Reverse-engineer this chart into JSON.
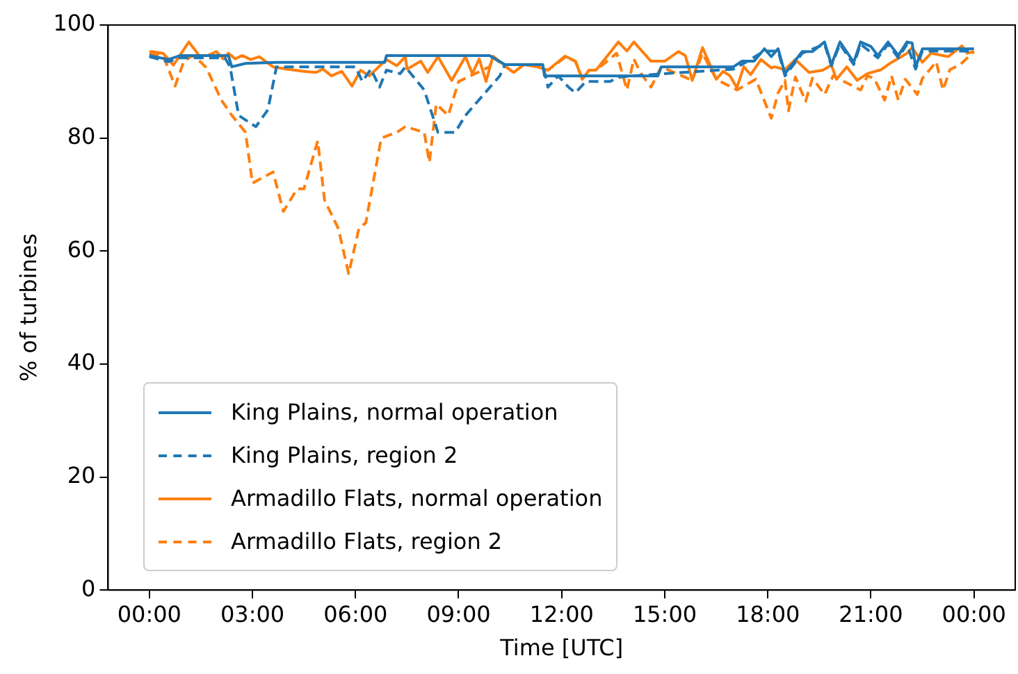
{
  "chart_data": {
    "type": "line",
    "xlabel": "Time [UTC]",
    "ylabel": "% of turbines",
    "xlim": [
      -1.2,
      25.2
    ],
    "ylim": [
      0,
      100
    ],
    "xticks": [
      {
        "value": 0,
        "label": "00:00"
      },
      {
        "value": 3,
        "label": "03:00"
      },
      {
        "value": 6,
        "label": "06:00"
      },
      {
        "value": 9,
        "label": "09:00"
      },
      {
        "value": 12,
        "label": "12:00"
      },
      {
        "value": 15,
        "label": "15:00"
      },
      {
        "value": 18,
        "label": "18:00"
      },
      {
        "value": 21,
        "label": "21:00"
      },
      {
        "value": 24,
        "label": "00:00"
      }
    ],
    "yticks": [
      0,
      20,
      40,
      60,
      80,
      100
    ],
    "grid": false,
    "legend": "bottom left",
    "marker": "none",
    "series": [
      {
        "name": "King Plains, normal operation",
        "color": "#1f77b4",
        "line_style": "solid",
        "x": [
          0,
          0.55,
          0.9,
          2.3,
          2.4,
          2.8,
          3.7,
          6.85,
          6.9,
          9.9,
          10.35,
          11.45,
          11.5,
          14.8,
          14.9,
          17,
          17.25,
          17.6,
          17.9,
          18.1,
          18.3,
          18.5,
          19,
          19.3,
          19.65,
          19.85,
          20.1,
          20.5,
          20.7,
          21,
          21.2,
          21.5,
          21.8,
          22.05,
          22.2,
          22.3,
          22.5,
          24
        ],
        "values": [
          94.6,
          93.9,
          94.6,
          94.6,
          92.6,
          93.2,
          93.4,
          93.4,
          94.6,
          94.6,
          93,
          93,
          91,
          91,
          92.6,
          92.6,
          93.6,
          93.6,
          95.8,
          94.4,
          95.8,
          91.4,
          95.3,
          95.3,
          97,
          93,
          97,
          93.4,
          97,
          96.2,
          94.6,
          97,
          94.6,
          97,
          96.8,
          92.6,
          95.8,
          95.8
        ]
      },
      {
        "name": "King Plains, region 2",
        "color": "#1f77b4",
        "line_style": "dashed",
        "x": [
          0,
          0.55,
          0.9,
          2.2,
          2.35,
          2.6,
          3.1,
          3.45,
          3.7,
          6,
          6.2,
          6.45,
          6.7,
          6.9,
          7.3,
          7.45,
          8,
          8.4,
          8.9,
          9.2,
          10.2,
          10.35,
          11.45,
          11.6,
          11.9,
          12.2,
          12.4,
          12.7,
          13.4,
          13.7,
          15,
          16,
          17,
          17.3,
          17.9,
          18.3,
          18.5,
          19,
          19.65,
          19.85,
          20.1,
          20.5,
          20.7,
          21.2,
          21.5,
          21.8,
          22.05,
          22.3,
          22.5,
          24
        ],
        "values": [
          94.4,
          93.5,
          94.2,
          94.2,
          92.6,
          84,
          82,
          85,
          92.6,
          92.6,
          90,
          92.2,
          89,
          92,
          91.4,
          92.6,
          88.5,
          81,
          81,
          84,
          91,
          93,
          93,
          89,
          91,
          89,
          88,
          90,
          90,
          90.8,
          91.4,
          91.8,
          92.2,
          93.2,
          95.4,
          95.4,
          91,
          95,
          96.6,
          92.8,
          96.6,
          93,
          96.6,
          94.2,
          96.6,
          94.2,
          96.6,
          92.2,
          95.4,
          95.4
        ]
      },
      {
        "name": "Armadillo Flats, normal operation",
        "color": "#ff7f0e",
        "line_style": "solid",
        "x": [
          0,
          0.08,
          0.4,
          0.7,
          1.15,
          1.45,
          1.7,
          1.95,
          2.15,
          2.3,
          2.5,
          2.7,
          2.95,
          3.2,
          3.6,
          4,
          4.5,
          4.85,
          5.05,
          5.3,
          5.6,
          5.9,
          6.15,
          6.4,
          6.9,
          7.2,
          7.45,
          7.5,
          7.9,
          8.1,
          8.4,
          8.8,
          9.2,
          9.4,
          9.6,
          9.8,
          10,
          10.6,
          10.9,
          11.3,
          11.6,
          12.1,
          12.4,
          12.6,
          12.8,
          13,
          13.65,
          13.9,
          14.1,
          14.6,
          15,
          15.4,
          15.6,
          15.8,
          16.1,
          16.5,
          16.7,
          16.9,
          17.1,
          17.3,
          17.5,
          17.8,
          18.1,
          18.2,
          18.5,
          18.8,
          19.2,
          19.6,
          19.85,
          20,
          20.3,
          20.6,
          20.9,
          21.3,
          21.6,
          22.05,
          22.2,
          22.5,
          22.75,
          23.25,
          23.65,
          23.8,
          24
        ],
        "values": [
          95.3,
          95.3,
          95,
          92.9,
          97,
          94.6,
          94.6,
          95.3,
          94,
          95,
          94,
          94.6,
          93.9,
          94.4,
          92.6,
          92.2,
          91.8,
          91.6,
          92.2,
          91,
          91.8,
          89.2,
          92,
          91,
          93.9,
          92.8,
          94.4,
          92.2,
          93.6,
          91.6,
          94.4,
          90.2,
          94.4,
          91.4,
          94,
          90,
          94.5,
          91.6,
          93,
          92.6,
          92,
          94.5,
          93.6,
          90.4,
          92,
          92,
          97,
          95.4,
          97,
          93.6,
          93.6,
          95.3,
          94.6,
          90.2,
          96,
          90.4,
          91.8,
          91,
          88.9,
          92.6,
          91.2,
          93.9,
          92.4,
          92.6,
          92.1,
          93.9,
          91.6,
          92,
          92.9,
          90.4,
          92.6,
          90.2,
          91.4,
          92.1,
          93.4,
          95,
          96,
          93.4,
          95,
          94.4,
          96.3,
          95,
          95.3
        ]
      },
      {
        "name": "Armadillo Flats, region 2",
        "color": "#ff7f0e",
        "line_style": "dashed",
        "x": [
          0,
          0.4,
          0.75,
          1,
          1.25,
          1.5,
          1.65,
          2.1,
          2.4,
          2.8,
          3,
          3.6,
          3.9,
          4.3,
          4.5,
          4.9,
          5.1,
          5.5,
          5.8,
          6.1,
          6.3,
          6.75,
          7.2,
          7.45,
          8,
          8.15,
          8.35,
          8.7,
          9,
          9.9,
          10,
          10.6,
          10.9,
          11.3,
          11.6,
          12.1,
          12.4,
          12.6,
          12.8,
          13,
          13.6,
          13.9,
          14.1,
          14.3,
          14.6,
          14.9,
          15.8,
          16.1,
          16.5,
          17.1,
          17.65,
          18.1,
          18.3,
          18.5,
          18.6,
          18.8,
          19.1,
          19.3,
          19.65,
          19.9,
          20.7,
          20.9,
          21.1,
          21.4,
          21.6,
          21.8,
          22,
          22.35,
          22.5,
          22.7,
          22.9,
          23.1,
          23.3,
          23.6,
          24
        ],
        "values": [
          95,
          94.6,
          89.2,
          93.5,
          94.6,
          93.4,
          92.5,
          86.7,
          84,
          81,
          72,
          74,
          67,
          71,
          71,
          79.5,
          69,
          64,
          56,
          64,
          65,
          80,
          81,
          82,
          81,
          75.7,
          86,
          84,
          90,
          92.6,
          94.3,
          91.6,
          93,
          92.6,
          92,
          94.3,
          93.6,
          90.6,
          92,
          92,
          95,
          88.5,
          94,
          91.5,
          89,
          92.6,
          90.2,
          95,
          90.4,
          88.5,
          90.4,
          83.5,
          88,
          90.2,
          84.8,
          90.8,
          86.5,
          90.6,
          87.7,
          91,
          88.5,
          91,
          90.5,
          86.7,
          91,
          86.7,
          90.4,
          87.7,
          90.6,
          92,
          93.5,
          88.5,
          92.1,
          93,
          95.3
        ]
      }
    ]
  }
}
